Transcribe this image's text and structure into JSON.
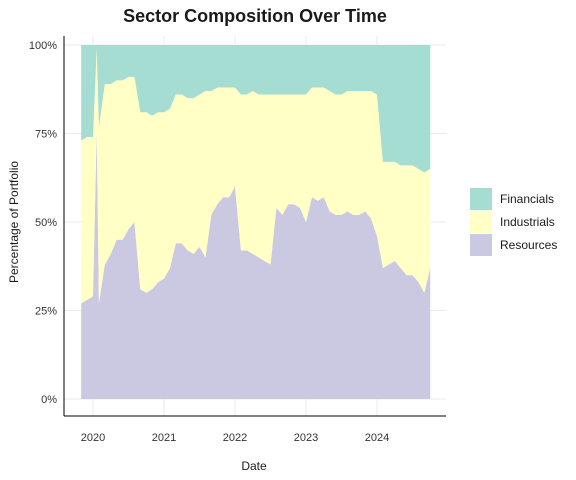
{
  "chart_data": {
    "type": "area",
    "stacking": "percent",
    "title": "Sector Composition Over Time",
    "xlabel": "Date",
    "ylabel": "Percentage of Portfolio",
    "x_ticks": [
      "2020",
      "2021",
      "2022",
      "2023",
      "2024"
    ],
    "y_ticks": [
      "0%",
      "25%",
      "50%",
      "75%",
      "100%"
    ],
    "xlim": [
      "2019-11",
      "2024-10"
    ],
    "ylim": [
      0,
      1
    ],
    "grid": true,
    "legend_position": "right",
    "x": [
      "2019-11",
      "2019-12",
      "2020-01",
      "2020-02",
      "2020-03",
      "2020-04",
      "2020-05",
      "2020-06",
      "2020-07",
      "2020-08",
      "2020-09",
      "2020-10",
      "2020-11",
      "2020-12",
      "2021-01",
      "2021-02",
      "2021-03",
      "2021-04",
      "2021-05",
      "2021-06",
      "2021-07",
      "2021-08",
      "2021-09",
      "2021-10",
      "2021-11",
      "2021-12",
      "2022-01",
      "2022-02",
      "2022-03",
      "2022-04",
      "2022-05",
      "2022-06",
      "2022-07",
      "2022-08",
      "2022-09",
      "2022-10",
      "2022-11",
      "2022-12",
      "2023-01",
      "2023-02",
      "2023-03",
      "2023-04",
      "2023-05",
      "2023-06",
      "2023-07",
      "2023-08",
      "2023-09",
      "2023-10",
      "2023-11",
      "2023-12",
      "2024-01",
      "2024-02",
      "2024-03",
      "2024-04",
      "2024-05",
      "2024-06",
      "2024-07",
      "2024-08",
      "2024-09",
      "2024-10"
    ],
    "series": [
      {
        "name": "Resources",
        "color": "#cbc9e2",
        "values": [
          0.27,
          0.28,
          0.29,
          0.27,
          0.38,
          0.41,
          0.45,
          0.45,
          0.48,
          0.5,
          0.31,
          0.3,
          0.31,
          0.33,
          0.34,
          0.37,
          0.44,
          0.44,
          0.42,
          0.41,
          0.43,
          0.4,
          0.52,
          0.55,
          0.57,
          0.57,
          0.6,
          0.42,
          0.42,
          0.41,
          0.4,
          0.39,
          0.38,
          0.54,
          0.52,
          0.55,
          0.55,
          0.54,
          0.5,
          0.57,
          0.56,
          0.57,
          0.53,
          0.52,
          0.52,
          0.53,
          0.52,
          0.52,
          0.53,
          0.51,
          0.46,
          0.37,
          0.38,
          0.39,
          0.37,
          0.35,
          0.35,
          0.33,
          0.3,
          0.37
        ]
      },
      {
        "name": "Industrials",
        "color": "#ffffc6",
        "values": [
          0.46,
          0.46,
          0.45,
          0.5,
          0.51,
          0.48,
          0.45,
          0.45,
          0.43,
          0.41,
          0.5,
          0.51,
          0.49,
          0.48,
          0.47,
          0.45,
          0.42,
          0.42,
          0.43,
          0.44,
          0.43,
          0.47,
          0.35,
          0.33,
          0.31,
          0.31,
          0.28,
          0.44,
          0.44,
          0.46,
          0.46,
          0.47,
          0.48,
          0.32,
          0.34,
          0.31,
          0.31,
          0.32,
          0.36,
          0.31,
          0.32,
          0.31,
          0.34,
          0.34,
          0.34,
          0.34,
          0.35,
          0.35,
          0.34,
          0.36,
          0.4,
          0.3,
          0.29,
          0.28,
          0.29,
          0.31,
          0.31,
          0.32,
          0.34,
          0.28
        ]
      },
      {
        "name": "Financials",
        "color": "#a6ddd3",
        "values": [
          0.27,
          0.26,
          0.26,
          0.23,
          0.11,
          0.11,
          0.1,
          0.1,
          0.09,
          0.09,
          0.19,
          0.19,
          0.2,
          0.19,
          0.19,
          0.18,
          0.14,
          0.14,
          0.15,
          0.15,
          0.14,
          0.13,
          0.13,
          0.12,
          0.12,
          0.12,
          0.12,
          0.14,
          0.14,
          0.13,
          0.14,
          0.14,
          0.14,
          0.14,
          0.14,
          0.14,
          0.14,
          0.14,
          0.14,
          0.12,
          0.12,
          0.12,
          0.13,
          0.14,
          0.14,
          0.13,
          0.13,
          0.13,
          0.13,
          0.13,
          0.14,
          0.33,
          0.33,
          0.33,
          0.34,
          0.34,
          0.34,
          0.35,
          0.36,
          0.35
        ]
      }
    ],
    "spikes": [
      {
        "x": "2020-01-20",
        "Resources": 0.76,
        "Industrials": 0.23,
        "Financials": 0.01
      }
    ],
    "legend_order": [
      "Financials",
      "Industrials",
      "Resources"
    ]
  }
}
